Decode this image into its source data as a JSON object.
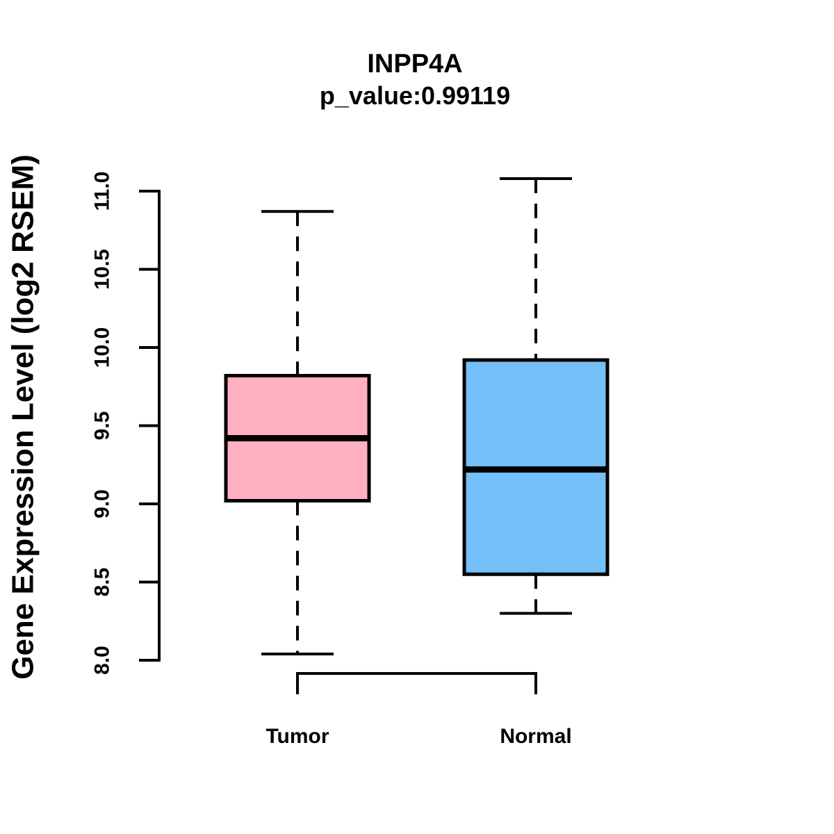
{
  "chart_data": {
    "type": "boxplot",
    "title": "INPP4A",
    "subtitle": "p_value:0.99119",
    "ylabel": "Gene Expression Level (log2 RSEM)",
    "xlabel": "",
    "yticks": [
      8.0,
      8.5,
      9.0,
      9.5,
      10.0,
      10.5,
      11.0
    ],
    "ytick_labels": [
      "8.0",
      "8.5",
      "9.0",
      "9.5",
      "10.0",
      "10.5",
      "11.0"
    ],
    "ylim": [
      8.0,
      11.0
    ],
    "grid": false,
    "legend": "none",
    "categories": [
      "Tumor",
      "Normal"
    ],
    "groups": [
      {
        "label": "Tumor",
        "fill_color": "#FFB0C1",
        "whisker_low": 8.04,
        "q1": 9.02,
        "median": 9.42,
        "q3": 9.82,
        "whisker_high": 10.87
      },
      {
        "label": "Normal",
        "fill_color": "#74BFF7",
        "whisker_low": 8.3,
        "q1": 8.55,
        "median": 9.22,
        "q3": 9.92,
        "whisker_high": 11.08
      }
    ],
    "colors": {
      "stroke": "#000000",
      "text": "#000000",
      "background": "#FFFFFF"
    }
  }
}
